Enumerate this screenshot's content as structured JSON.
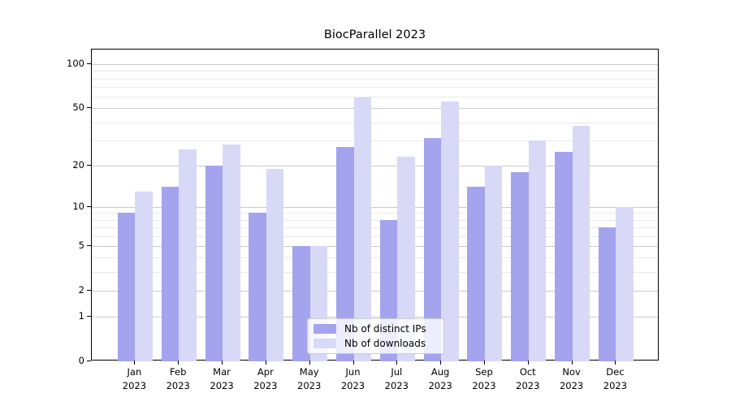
{
  "title": "BiocParallel 2023",
  "chart_data": {
    "type": "bar",
    "categories": [
      "Jan",
      "Feb",
      "Mar",
      "Apr",
      "May",
      "Jun",
      "Jul",
      "Aug",
      "Sep",
      "Oct",
      "Nov",
      "Dec"
    ],
    "year_label": "2023",
    "series": [
      {
        "name": "Nb of distinct IPs",
        "color": "#a3a3ee",
        "values": [
          9,
          14,
          20,
          9,
          5,
          27,
          8,
          31,
          14,
          18,
          25,
          7
        ]
      },
      {
        "name": "Nb of downloads",
        "color": "#d8d8f7",
        "values": [
          13,
          26,
          28,
          19,
          5,
          59,
          23,
          56,
          20,
          30,
          38,
          10
        ]
      }
    ],
    "yscale": "log1p",
    "ylim": [
      0,
      126
    ],
    "yticks": [
      100,
      50,
      20,
      10,
      5,
      2,
      1,
      0
    ],
    "minor_yticks": [
      3,
      4,
      6,
      7,
      8,
      9,
      30,
      40,
      60,
      70,
      80,
      90
    ],
    "grid": true,
    "legend_position": "lower center"
  },
  "colors": {
    "major_grid": "#c9c9c9",
    "minor_grid": "#e9e9e9",
    "axis": "#000000",
    "legend_border": "#cccccc"
  }
}
